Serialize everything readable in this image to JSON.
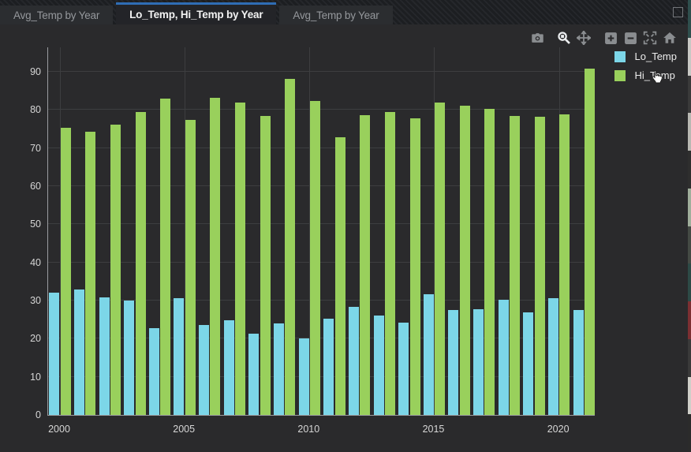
{
  "tabs": [
    {
      "label": "Avg_Temp by Year",
      "active": false
    },
    {
      "label": "Lo_Temp, Hi_Temp by Year",
      "active": true
    },
    {
      "label": "Avg_Temp by Year",
      "active": false
    }
  ],
  "window_controls": {
    "restore_icon": "square-outline"
  },
  "toolbar": {
    "icons": [
      {
        "name": "camera",
        "active": false
      },
      {
        "name": "zoom",
        "active": true
      },
      {
        "name": "pan",
        "active": false
      },
      {
        "name": "zoom-in",
        "active": false
      },
      {
        "name": "zoom-out",
        "active": false
      },
      {
        "name": "autoscale",
        "active": false
      },
      {
        "name": "reset-axes",
        "active": false
      }
    ]
  },
  "legend": [
    {
      "label": "Lo_Temp",
      "color": "#7cd6e8"
    },
    {
      "label": "Hi_Temp",
      "color": "#99d05c"
    }
  ],
  "colors": {
    "accent_blue": "#2f6db5",
    "lo_temp": "#7cd6e8",
    "hi_temp": "#99d05c",
    "chart_bg": "#2a2a2c",
    "grid": "#3d3e40",
    "axis_line": "#9a9ca0",
    "tick_text": "#d6d6d6"
  },
  "chart_data": {
    "type": "bar",
    "title": "Lo_Temp, Hi_Temp by Year",
    "categories": [
      2000,
      2001,
      2002,
      2003,
      2004,
      2005,
      2006,
      2007,
      2008,
      2009,
      2010,
      2011,
      2012,
      2013,
      2014,
      2015,
      2016,
      2017,
      2018,
      2019,
      2020,
      2021
    ],
    "series": [
      {
        "name": "Lo_Temp",
        "color": "#7cd6e8",
        "values": [
          32.1,
          32.8,
          30.9,
          30.0,
          22.8,
          30.7,
          23.5,
          24.8,
          21.4,
          24.0,
          20.0,
          25.2,
          28.3,
          26.1,
          24.2,
          31.7,
          27.6,
          27.8,
          30.2,
          26.8,
          30.6,
          27.5
        ]
      },
      {
        "name": "Hi_Temp",
        "color": "#99d05c",
        "values": [
          75.4,
          74.3,
          76.2,
          79.4,
          82.9,
          77.3,
          83.2,
          82.0,
          78.4,
          88.2,
          82.3,
          72.9,
          78.7,
          79.4,
          77.8,
          81.9,
          81.0,
          80.2,
          78.5,
          78.1,
          78.8,
          90.9
        ]
      }
    ],
    "xlabel": "",
    "ylabel": "",
    "yticks": [
      0,
      10,
      20,
      30,
      40,
      50,
      60,
      70,
      80,
      90
    ],
    "xticks": [
      2000,
      2005,
      2010,
      2015,
      2020
    ],
    "ylim": [
      0,
      96.6
    ],
    "grid": true,
    "legend_position": "top-right"
  },
  "edge_artifact": {
    "segments": [
      "#2f4f4d",
      "#c8c8c4",
      "#3a3a3a",
      "#b8b8b2",
      "#2e2e2e",
      "#9fae9b",
      "#444a44",
      "#2d4a46",
      "#7c2f32",
      "#3a3a3a",
      "#cfcfc9",
      "#2b2b2b"
    ]
  }
}
